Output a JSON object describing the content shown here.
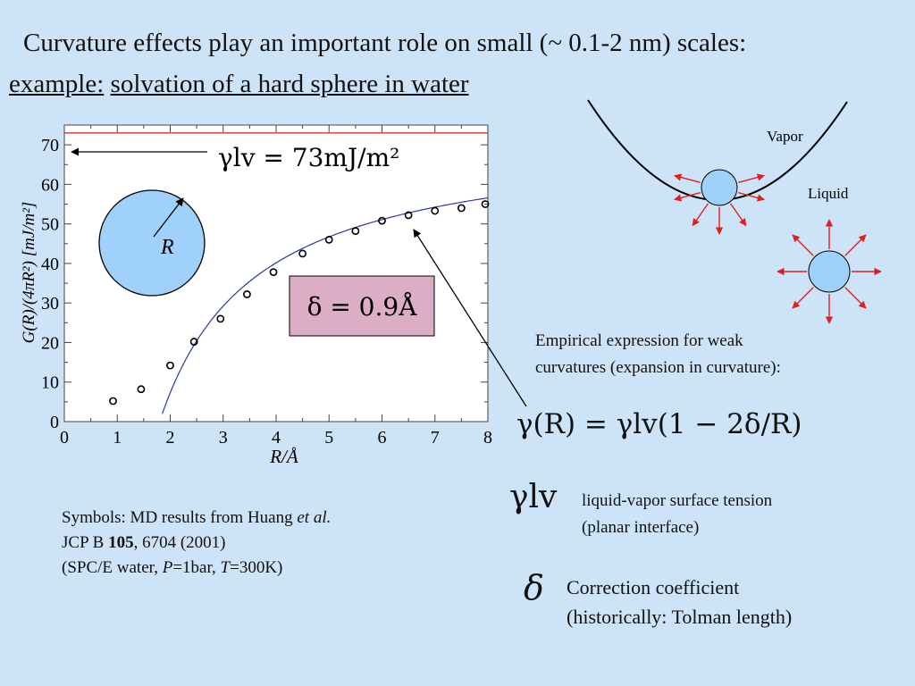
{
  "slide": {
    "title_line1": "Curvature effects play an important role on small (~ 0.1-2 nm) scales:",
    "title_example": "example:",
    "title_topic": "solvation of a hard sphere in water"
  },
  "chart_data": {
    "type": "scatter",
    "xlabel": "R/Å",
    "ylabel": "G(R)/(4πR²) [mJ/m²]",
    "xlim": [
      0,
      8
    ],
    "ylim": [
      0,
      75
    ],
    "x_ticks": [
      "0",
      "1",
      "2",
      "3",
      "4",
      "5",
      "6",
      "7",
      "8"
    ],
    "y_ticks": [
      "0",
      "10",
      "20",
      "30",
      "40",
      "50",
      "60",
      "70"
    ],
    "grid": false,
    "series": [
      {
        "kind": "markers",
        "x": [
          0.92,
          1.45,
          2.0,
          2.45,
          2.95,
          3.45,
          3.95,
          4.5,
          5.0,
          5.5,
          6.0,
          6.5,
          7.0,
          7.5,
          7.95
        ],
        "y": [
          5.2,
          8.2,
          14.2,
          20.2,
          26.0,
          32.2,
          37.8,
          42.5,
          46.0,
          48.2,
          50.8,
          52.2,
          53.3,
          54.0,
          55.0
        ]
      },
      {
        "kind": "fit",
        "formula": "73*(1-2*0.9/R)",
        "x_range": [
          1.85,
          8.0
        ]
      }
    ],
    "reference_line": {
      "y": 73,
      "color": "#cc2222"
    },
    "annotations": {
      "gamma_lv": "γlv = 73mJ/m²",
      "delta": "δ = 0.9Å",
      "radius_label": "R"
    },
    "colors": {
      "delta_box_fill": "#dbaec6",
      "sphere_fill": "#9fd1fb"
    }
  },
  "diagram": {
    "vapor_label": "Vapor",
    "liquid_label": "Liquid",
    "arrow_color": "#e02020",
    "sphere_fill": "#9fd1fb"
  },
  "empirical": {
    "line1": "Empirical expression for weak",
    "line2": "curvatures (expansion in curvature):",
    "formula": "γ(R) = γlv(1 − 2δ/R)"
  },
  "symbols_note": {
    "line1_prefix": "Symbols: MD results from Huang ",
    "line1_italic": "et al.",
    "line2_journal": "JCP B ",
    "line2_volume": "105",
    "line2_rest": ", 6704 (2001)",
    "line3_a": "(SPC/E water, ",
    "line3_p": "P",
    "line3_b": "=1bar, ",
    "line3_t": "T",
    "line3_c": "=300K)"
  },
  "legend_defs": {
    "gamma_symbol": "γlv",
    "gamma_desc1": "liquid-vapor surface tension",
    "gamma_desc2": "(planar interface)",
    "delta_symbol": "δ",
    "delta_desc1": "Correction coefficient",
    "delta_desc2": "(historically: Tolman length)"
  }
}
